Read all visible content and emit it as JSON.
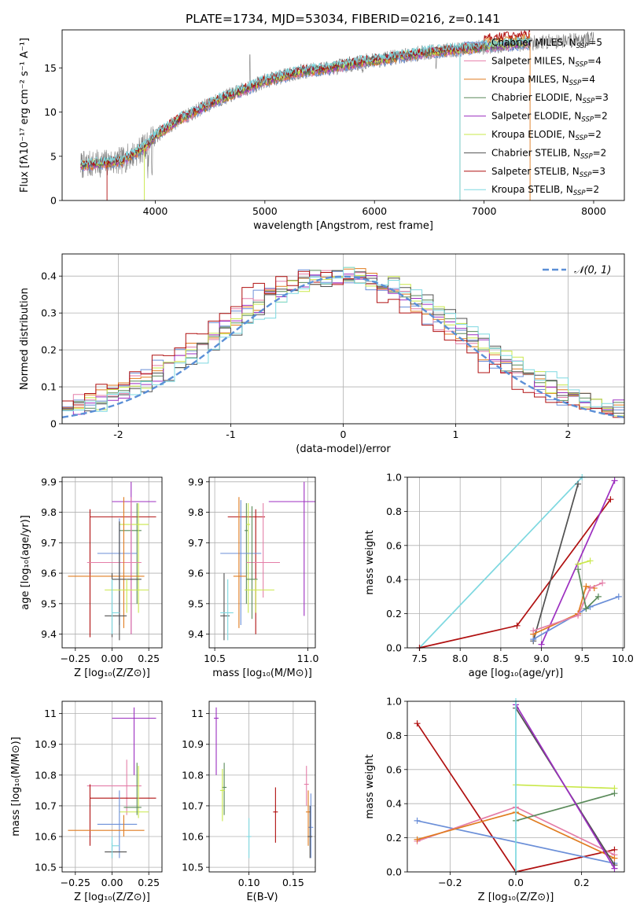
{
  "title": "PLATE=1734, MJD=53034, FIBERID=0216, z=0.141",
  "colors": {
    "chabrier_miles": "#6b8fd8",
    "salpeter_miles": "#e47ea8",
    "kroupa_miles": "#e07c20",
    "chabrier_elodie": "#5a8a5a",
    "salpeter_elodie": "#9c2fc0",
    "kroupa_elodie": "#c9e84a",
    "chabrier_stelib": "#505050",
    "salpeter_stelib": "#b01010",
    "kroupa_stelib": "#7dd8e0",
    "gaussian": "#5b8fd6",
    "data": "#808080"
  },
  "legend": [
    {
      "key": "chabrier_miles",
      "text": "Chabrier MILES, N",
      "sub": "SSP",
      "val": "=5"
    },
    {
      "key": "salpeter_miles",
      "text": "Salpeter MILES, N",
      "sub": "SSP",
      "val": "=4"
    },
    {
      "key": "kroupa_miles",
      "text": "Kroupa MILES, N",
      "sub": "SSP",
      "val": "=4"
    },
    {
      "key": "chabrier_elodie",
      "text": "Chabrier ELODIE, N",
      "sub": "SSP",
      "val": "=3"
    },
    {
      "key": "salpeter_elodie",
      "text": "Salpeter ELODIE, N",
      "sub": "SSP",
      "val": "=2"
    },
    {
      "key": "kroupa_elodie",
      "text": "Kroupa ELODIE, N",
      "sub": "SSP",
      "val": "=2"
    },
    {
      "key": "chabrier_stelib",
      "text": "Chabrier STELIB, N",
      "sub": "SSP",
      "val": "=2"
    },
    {
      "key": "salpeter_stelib",
      "text": "Salpeter STELIB, N",
      "sub": "SSP",
      "val": "=3"
    },
    {
      "key": "kroupa_stelib",
      "text": "Kroupa STELIB, N",
      "sub": "SSP",
      "val": "=2"
    }
  ],
  "chart_data": [
    {
      "id": "spectrum",
      "type": "line",
      "xlabel": "wavelength [Angstrom, rest frame]",
      "ylabel": "Flux [fλ10⁻¹⁷ erg cm⁻² s⁻¹ A⁻¹]",
      "xlim": [
        3150,
        8280
      ],
      "ylim": [
        0,
        19.3
      ],
      "xticks": [
        4000,
        5000,
        6000,
        7000,
        8000
      ],
      "yticks": [
        0,
        5,
        10,
        15
      ],
      "continuum": [
        [
          3320,
          4.0
        ],
        [
          3500,
          4.2
        ],
        [
          3700,
          4.5
        ],
        [
          3900,
          6.0
        ],
        [
          4000,
          7.3
        ],
        [
          4200,
          9.0
        ],
        [
          4400,
          10.3
        ],
        [
          4600,
          11.5
        ],
        [
          4800,
          12.5
        ],
        [
          5000,
          13.5
        ],
        [
          5300,
          14.5
        ],
        [
          5600,
          15.0
        ],
        [
          5900,
          15.7
        ],
        [
          6200,
          16.2
        ],
        [
          6500,
          16.8
        ],
        [
          6800,
          17.1
        ],
        [
          7100,
          17.5
        ],
        [
          7400,
          17.8
        ]
      ],
      "data_range": [
        3320,
        8000
      ],
      "model_range": [
        3320,
        7420
      ]
    },
    {
      "id": "residuals",
      "type": "histogram",
      "xlabel": "(data-model)/error",
      "ylabel": "Normed distribution",
      "xlim": [
        -2.5,
        2.5
      ],
      "ylim": [
        0,
        0.46
      ],
      "xticks": [
        -2,
        -1,
        0,
        1,
        2
      ],
      "yticks": [
        0.0,
        0.1,
        0.2,
        0.3,
        0.4
      ],
      "legend_label": "𝒩(0, 1)",
      "bins": 50
    },
    {
      "id": "age_vs_Z",
      "type": "errorbar",
      "xlabel": "Z [log₁₀(Z/Z⊙)]",
      "ylabel": "age  [log₁₀(age/yr)]",
      "xlim": [
        -0.34,
        0.34
      ],
      "ylim": [
        9.355,
        9.915
      ],
      "xticks": [
        -0.25,
        0.0,
        0.25
      ],
      "xticklabels": [
        "−0.25",
        "0.00",
        "0.25"
      ],
      "yticks": [
        9.4,
        9.5,
        9.6,
        9.7,
        9.8,
        9.9
      ],
      "points": [
        {
          "k": "salpeter_elodie",
          "x": 0.13,
          "xl": 0.0,
          "xh": 0.3,
          "y": 9.835,
          "yl": 9.4,
          "yh": 9.9
        },
        {
          "k": "salpeter_stelib",
          "x": -0.15,
          "xl": -0.15,
          "xh": 0.3,
          "y": 9.785,
          "yl": 9.39,
          "yh": 9.81
        },
        {
          "k": "chabrier_elodie",
          "x": 0.17,
          "xl": 0.05,
          "xh": 0.2,
          "y": 9.74,
          "yl": 9.5,
          "yh": 9.83
        },
        {
          "k": "kroupa_elodie",
          "x": 0.18,
          "xl": 0.05,
          "xh": 0.25,
          "y": 9.76,
          "yl": 9.47,
          "yh": 9.83
        },
        {
          "k": "chabrier_miles",
          "x": 0.05,
          "xl": -0.1,
          "xh": 0.17,
          "y": 9.665,
          "yl": 9.43,
          "yh": 9.78
        },
        {
          "k": "salpeter_miles",
          "x": 0.13,
          "xl": -0.17,
          "xh": 0.2,
          "y": 9.635,
          "yl": 9.4,
          "yh": 9.85
        },
        {
          "k": "kroupa_miles",
          "x": 0.08,
          "xl": -0.3,
          "xh": 0.22,
          "y": 9.59,
          "yl": 9.42,
          "yh": 9.85
        },
        {
          "k": "chabrier_stelib",
          "x": 0.05,
          "xl": 0.0,
          "xh": 0.2,
          "y": 9.58,
          "yl": 9.38,
          "yh": 9.77
        },
        {
          "k": "kroupa_elodie",
          "x": 0.1,
          "xl": -0.05,
          "xh": 0.25,
          "y": 9.545,
          "yl": 9.47,
          "yh": 9.58
        },
        {
          "k": "chabrier_stelib",
          "x": 0.0,
          "xl": -0.05,
          "xh": 0.1,
          "y": 9.46,
          "yl": 9.39,
          "yh": 9.6
        },
        {
          "k": "kroupa_stelib",
          "x": 0.0,
          "xl": 0.0,
          "xh": 0.05,
          "y": 9.47,
          "yl": 9.4,
          "yh": 9.58
        }
      ]
    },
    {
      "id": "age_vs_mass",
      "type": "errorbar",
      "xlabel": "mass [log₁₀(M/M⊙)]",
      "ylabel": "",
      "xlim": [
        10.47,
        11.04
      ],
      "ylim": [
        9.355,
        9.915
      ],
      "xticks": [
        10.5,
        11.0
      ],
      "xticklabels": [
        "10.5",
        "11.0"
      ],
      "yticks": [
        9.4,
        9.5,
        9.6,
        9.7,
        9.8,
        9.9
      ],
      "points": [
        {
          "k": "salpeter_elodie",
          "x": 10.98,
          "xl": 10.79,
          "xh": 11.04,
          "y": 9.835,
          "yl": 9.46,
          "yh": 9.9
        },
        {
          "k": "salpeter_stelib",
          "x": 10.72,
          "xl": 10.57,
          "xh": 10.77,
          "y": 9.785,
          "yl": 9.4,
          "yh": 9.81
        },
        {
          "k": "chabrier_elodie",
          "x": 10.67,
          "xl": 10.66,
          "xh": 10.68,
          "y": 9.74,
          "yl": 9.5,
          "yh": 9.83
        },
        {
          "k": "kroupa_elodie",
          "x": 10.68,
          "xl": 10.67,
          "xh": 10.69,
          "y": 9.76,
          "yl": 9.47,
          "yh": 9.83
        },
        {
          "k": "chabrier_miles",
          "x": 10.64,
          "xl": 10.53,
          "xh": 10.75,
          "y": 9.665,
          "yl": 9.43,
          "yh": 9.84
        },
        {
          "k": "salpeter_miles",
          "x": 10.76,
          "xl": 10.67,
          "xh": 10.85,
          "y": 9.635,
          "yl": 9.52,
          "yh": 9.83
        },
        {
          "k": "kroupa_miles",
          "x": 10.63,
          "xl": 10.6,
          "xh": 10.67,
          "y": 9.59,
          "yl": 9.42,
          "yh": 9.85
        },
        {
          "k": "chabrier_elodie",
          "x": 10.7,
          "xl": 10.67,
          "xh": 10.73,
          "y": 9.58,
          "yl": 9.45,
          "yh": 9.82
        },
        {
          "k": "kroupa_elodie",
          "x": 10.72,
          "xl": 10.66,
          "xh": 10.82,
          "y": 9.545,
          "yl": 9.47,
          "yh": 9.58
        },
        {
          "k": "chabrier_stelib",
          "x": 10.55,
          "xl": 10.53,
          "xh": 10.58,
          "y": 9.46,
          "yl": 9.38,
          "yh": 9.6
        },
        {
          "k": "kroupa_stelib",
          "x": 10.57,
          "xl": 10.53,
          "xh": 10.6,
          "y": 9.47,
          "yl": 9.38,
          "yh": 9.58
        }
      ]
    },
    {
      "id": "weight_vs_age",
      "type": "line",
      "xlabel": "age  [log₁₀(age/yr)]",
      "ylabel": "mass weight",
      "xlim": [
        7.35,
        10.02
      ],
      "ylim": [
        0,
        1
      ],
      "xticks": [
        7.5,
        8.0,
        8.5,
        9.0,
        9.5,
        10.0
      ],
      "xticklabels": [
        "7.5",
        "8.0",
        "8.5",
        "9.0",
        "9.5",
        "10.0"
      ],
      "yticks": [
        0,
        0.2,
        0.4,
        0.6,
        0.8,
        1.0
      ],
      "yticklabels": [
        "0.0",
        "0.2",
        "0.4",
        "0.6",
        "0.8",
        "1.0"
      ],
      "series": [
        {
          "k": "kroupa_stelib",
          "x": [
            7.5,
            9.5
          ],
          "y": [
            0.0,
            1.0
          ]
        },
        {
          "k": "salpeter_stelib",
          "x": [
            7.5,
            8.7,
            9.85
          ],
          "y": [
            0.0,
            0.13,
            0.87
          ]
        },
        {
          "k": "chabrier_stelib",
          "x": [
            8.9,
            9.45
          ],
          "y": [
            0.04,
            0.96
          ]
        },
        {
          "k": "salpeter_elodie",
          "x": [
            9.0,
            9.9
          ],
          "y": [
            0.02,
            0.98
          ]
        },
        {
          "k": "chabrier_miles",
          "x": [
            8.9,
            9.45,
            9.55,
            9.6,
            9.95
          ],
          "y": [
            0.05,
            0.2,
            0.23,
            0.24,
            0.3
          ]
        },
        {
          "k": "kroupa_miles",
          "x": [
            8.9,
            9.45,
            9.55,
            9.65
          ],
          "y": [
            0.08,
            0.2,
            0.36,
            0.35
          ]
        },
        {
          "k": "salpeter_miles",
          "x": [
            8.9,
            9.45,
            9.6,
            9.75
          ],
          "y": [
            0.1,
            0.19,
            0.35,
            0.38
          ]
        },
        {
          "k": "kroupa_elodie",
          "x": [
            9.45,
            9.6
          ],
          "y": [
            0.49,
            0.51
          ]
        },
        {
          "k": "chabrier_elodie",
          "x": [
            9.45,
            9.55,
            9.7
          ],
          "y": [
            0.46,
            0.23,
            0.3
          ]
        }
      ]
    },
    {
      "id": "mass_vs_Z",
      "type": "errorbar",
      "xlabel": "Z [log₁₀(Z/Z⊙)]",
      "ylabel": "mass [log₁₀(M/M⊙)]",
      "xlim": [
        -0.34,
        0.34
      ],
      "ylim": [
        10.485,
        11.04
      ],
      "xticks": [
        -0.25,
        0.0,
        0.25
      ],
      "xticklabels": [
        "−0.25",
        "0.00",
        "0.25"
      ],
      "yticks": [
        10.5,
        10.6,
        10.7,
        10.8,
        10.9,
        11.0
      ],
      "points": [
        {
          "k": "salpeter_elodie",
          "x": 0.15,
          "xl": 0.0,
          "xh": 0.3,
          "y": 10.985,
          "yl": 10.8,
          "yh": 11.02
        },
        {
          "k": "salpeter_miles",
          "x": 0.1,
          "xl": -0.17,
          "xh": 0.2,
          "y": 10.765,
          "yl": 10.67,
          "yh": 10.85
        },
        {
          "k": "salpeter_stelib",
          "x": -0.15,
          "xl": -0.15,
          "xh": 0.3,
          "y": 10.725,
          "yl": 10.57,
          "yh": 10.77
        },
        {
          "k": "kroupa_elodie",
          "x": 0.18,
          "xl": 0.05,
          "xh": 0.25,
          "y": 10.68,
          "yl": 10.66,
          "yh": 10.83
        },
        {
          "k": "chabrier_elodie",
          "x": 0.17,
          "xl": 0.08,
          "xh": 0.2,
          "y": 10.695,
          "yl": 10.67,
          "yh": 10.84
        },
        {
          "k": "chabrier_miles",
          "x": 0.05,
          "xl": -0.1,
          "xh": 0.17,
          "y": 10.64,
          "yl": 10.53,
          "yh": 10.75
        },
        {
          "k": "kroupa_miles",
          "x": 0.08,
          "xl": -0.3,
          "xh": 0.22,
          "y": 10.62,
          "yl": 10.6,
          "yh": 10.67
        },
        {
          "k": "chabrier_stelib",
          "x": 0.0,
          "xl": -0.05,
          "xh": 0.1,
          "y": 10.55,
          "yl": 10.53,
          "yh": 10.58
        },
        {
          "k": "kroupa_stelib",
          "x": 0.0,
          "xl": 0.0,
          "xh": 0.05,
          "y": 10.57,
          "yl": 10.53,
          "yh": 10.6
        }
      ]
    },
    {
      "id": "mass_vs_EBV",
      "type": "errorbar",
      "xlabel": "E(B-V)",
      "ylabel": "",
      "xlim": [
        0.055,
        0.175
      ],
      "ylim": [
        10.485,
        11.04
      ],
      "xticks": [
        0.1,
        0.15
      ],
      "xticklabels": [
        "0.10",
        "0.15"
      ],
      "yticks": [
        10.5,
        10.6,
        10.7,
        10.8,
        10.9,
        11.0
      ],
      "points": [
        {
          "k": "salpeter_elodie",
          "x": 0.063,
          "y": 10.985,
          "yl": 10.8,
          "yh": 11.02
        },
        {
          "k": "chabrier_elodie",
          "x": 0.072,
          "y": 10.76,
          "yl": 10.67,
          "yh": 10.84
        },
        {
          "k": "kroupa_elodie",
          "x": 0.07,
          "y": 10.75,
          "yl": 10.65,
          "yh": 10.82
        },
        {
          "k": "kroupa_stelib",
          "x": 0.1,
          "y": 10.6,
          "yl": 10.53,
          "yh": 10.66
        },
        {
          "k": "salpeter_stelib",
          "x": 0.13,
          "y": 10.68,
          "yl": 10.58,
          "yh": 10.76
        },
        {
          "k": "salpeter_miles",
          "x": 0.165,
          "y": 10.77,
          "yl": 10.7,
          "yh": 10.83
        },
        {
          "k": "kroupa_miles",
          "x": 0.167,
          "y": 10.68,
          "yl": 10.57,
          "yh": 10.75
        },
        {
          "k": "chabrier_miles",
          "x": 0.17,
          "y": 10.63,
          "yl": 10.53,
          "yh": 10.74
        },
        {
          "k": "chabrier_stelib",
          "x": 0.169,
          "y": 10.6,
          "yl": 10.53,
          "yh": 10.7
        }
      ]
    },
    {
      "id": "weight_vs_Z",
      "type": "line",
      "xlabel": "Z [log₁₀(Z/Z⊙)]",
      "ylabel": "mass weight",
      "xlim": [
        -0.33,
        0.33
      ],
      "ylim": [
        0,
        1
      ],
      "xticks": [
        -0.2,
        0.0,
        0.2
      ],
      "xticklabels": [
        "−0.2",
        "0.0",
        "0.2"
      ],
      "yticks": [
        0,
        0.2,
        0.4,
        0.6,
        0.8,
        1.0
      ],
      "yticklabels": [
        "0.0",
        "0.2",
        "0.4",
        "0.6",
        "0.8",
        "1.0"
      ],
      "series": [
        {
          "k": "salpeter_stelib",
          "x": [
            -0.3,
            0.0,
            0.3
          ],
          "y": [
            0.87,
            0.0,
            0.13
          ]
        },
        {
          "k": "chabrier_miles",
          "x": [
            -0.3,
            0.3
          ],
          "y": [
            0.3,
            0.05
          ]
        },
        {
          "k": "salpeter_miles",
          "x": [
            -0.3,
            0.0,
            0.3
          ],
          "y": [
            0.18,
            0.38,
            0.1
          ]
        },
        {
          "k": "kroupa_miles",
          "x": [
            -0.3,
            0.0,
            0.3
          ],
          "y": [
            0.19,
            0.35,
            0.08
          ]
        },
        {
          "k": "kroupa_elodie",
          "x": [
            0.0,
            0.3
          ],
          "y": [
            0.51,
            0.49
          ]
        },
        {
          "k": "chabrier_elodie",
          "x": [
            0.0,
            0.3
          ],
          "y": [
            0.3,
            0.46
          ]
        },
        {
          "k": "chabrier_stelib",
          "x": [
            0.0,
            0.3
          ],
          "y": [
            0.96,
            0.04
          ]
        },
        {
          "k": "salpeter_elodie",
          "x": [
            0.0,
            0.3
          ],
          "y": [
            0.98,
            0.02
          ]
        },
        {
          "k": "kroupa_stelib",
          "x": [
            0.0,
            0.0
          ],
          "y": [
            0.0,
            1.0
          ]
        }
      ]
    }
  ]
}
